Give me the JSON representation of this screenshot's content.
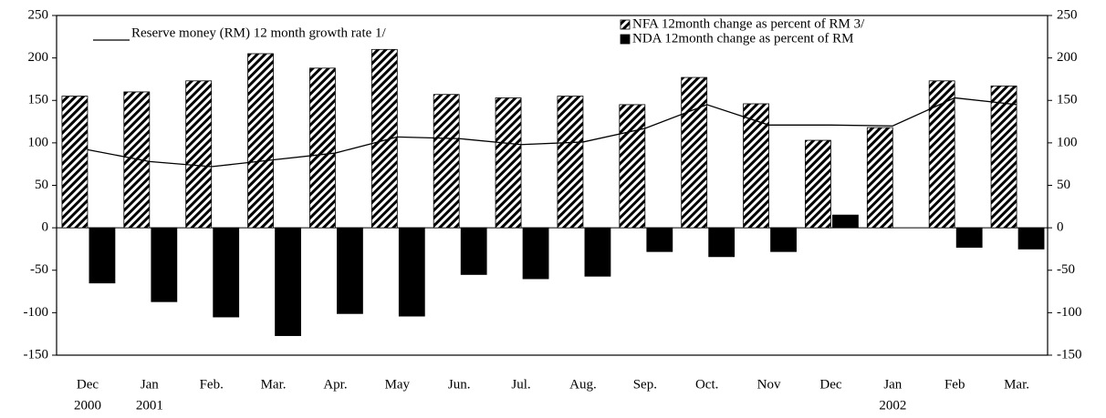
{
  "chart_data": {
    "type": "bar_line",
    "categories": [
      "Dec",
      "Jan",
      "Feb.",
      "Mar.",
      "Apr.",
      "May",
      "Jun.",
      "Jul.",
      "Aug.",
      "Sep.",
      "Oct.",
      "Nov",
      "Dec",
      "Jan",
      "Feb",
      "Mar."
    ],
    "year_labels": [
      "2000",
      "2001",
      null,
      null,
      null,
      null,
      null,
      null,
      null,
      null,
      null,
      null,
      null,
      "2002",
      null,
      null
    ],
    "series": [
      {
        "name": "Reserve money (RM)  12 month growth rate 1/",
        "kind": "line",
        "color": "#000000",
        "values": [
          92,
          78,
          72,
          80,
          88,
          107,
          105,
          98,
          101,
          117,
          145,
          121,
          121,
          120,
          153,
          145
        ]
      },
      {
        "name": "NFA 12month change as percent of RM 3/",
        "kind": "bar",
        "color": "hatch",
        "values": [
          155,
          160,
          173,
          205,
          188,
          210,
          157,
          153,
          155,
          145,
          177,
          146,
          103,
          118,
          173,
          167
        ]
      },
      {
        "name": "NDA 12month change as percent of RM",
        "kind": "bar",
        "color": "#000000",
        "values": [
          -65,
          -87,
          -105,
          -127,
          -101,
          -104,
          -55,
          -60,
          -57,
          -28,
          -34,
          -28,
          15,
          null,
          -23,
          -25
        ]
      }
    ],
    "ylim": [
      -150,
      250
    ],
    "yticks": [
      -150,
      -100,
      -50,
      0,
      50,
      100,
      150,
      200,
      250
    ],
    "y2lim": [
      -150,
      250
    ],
    "y2ticks": [
      -150,
      -100,
      -50,
      0,
      50,
      100,
      150,
      200,
      250
    ]
  }
}
